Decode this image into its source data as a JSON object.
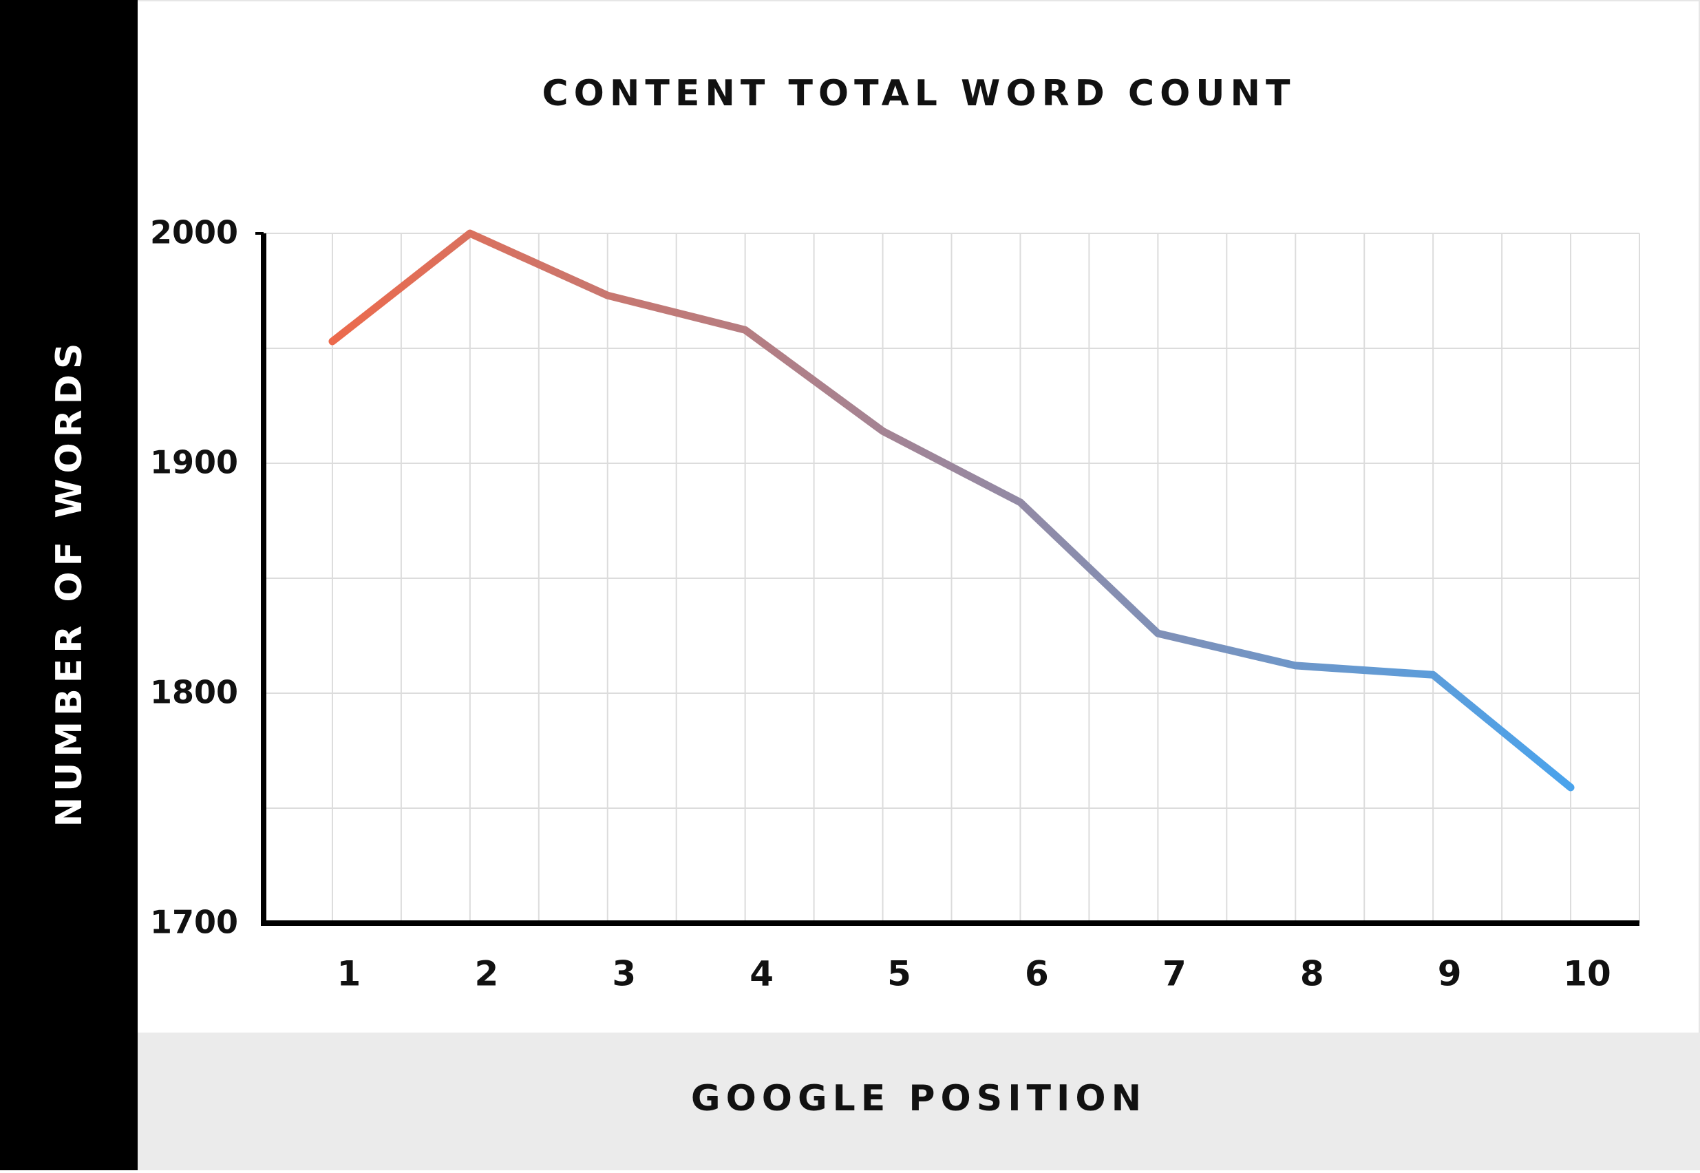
{
  "chart_data": {
    "type": "line",
    "title": "CONTENT TOTAL WORD COUNT",
    "x_label": "GOOGLE POSITION",
    "y_label": "NUMBER OF WORDS",
    "x": [
      1,
      2,
      3,
      4,
      5,
      6,
      7,
      8,
      9,
      10
    ],
    "series": [
      {
        "values": [
          1953,
          2000,
          1973,
          1958,
          1914,
          1883,
          1826,
          1812,
          1808,
          1759
        ],
        "colors": [
          "#ec6a4c",
          "#4aa3ec"
        ]
      }
    ],
    "xlim": [
      0.5,
      10.5
    ],
    "xticks": [
      1,
      2,
      3,
      4,
      5,
      6,
      7,
      8,
      9,
      10
    ],
    "ylim": [
      1700,
      2000
    ],
    "yticks": [
      1700,
      1800,
      1900,
      2000
    ],
    "grid": true
  }
}
